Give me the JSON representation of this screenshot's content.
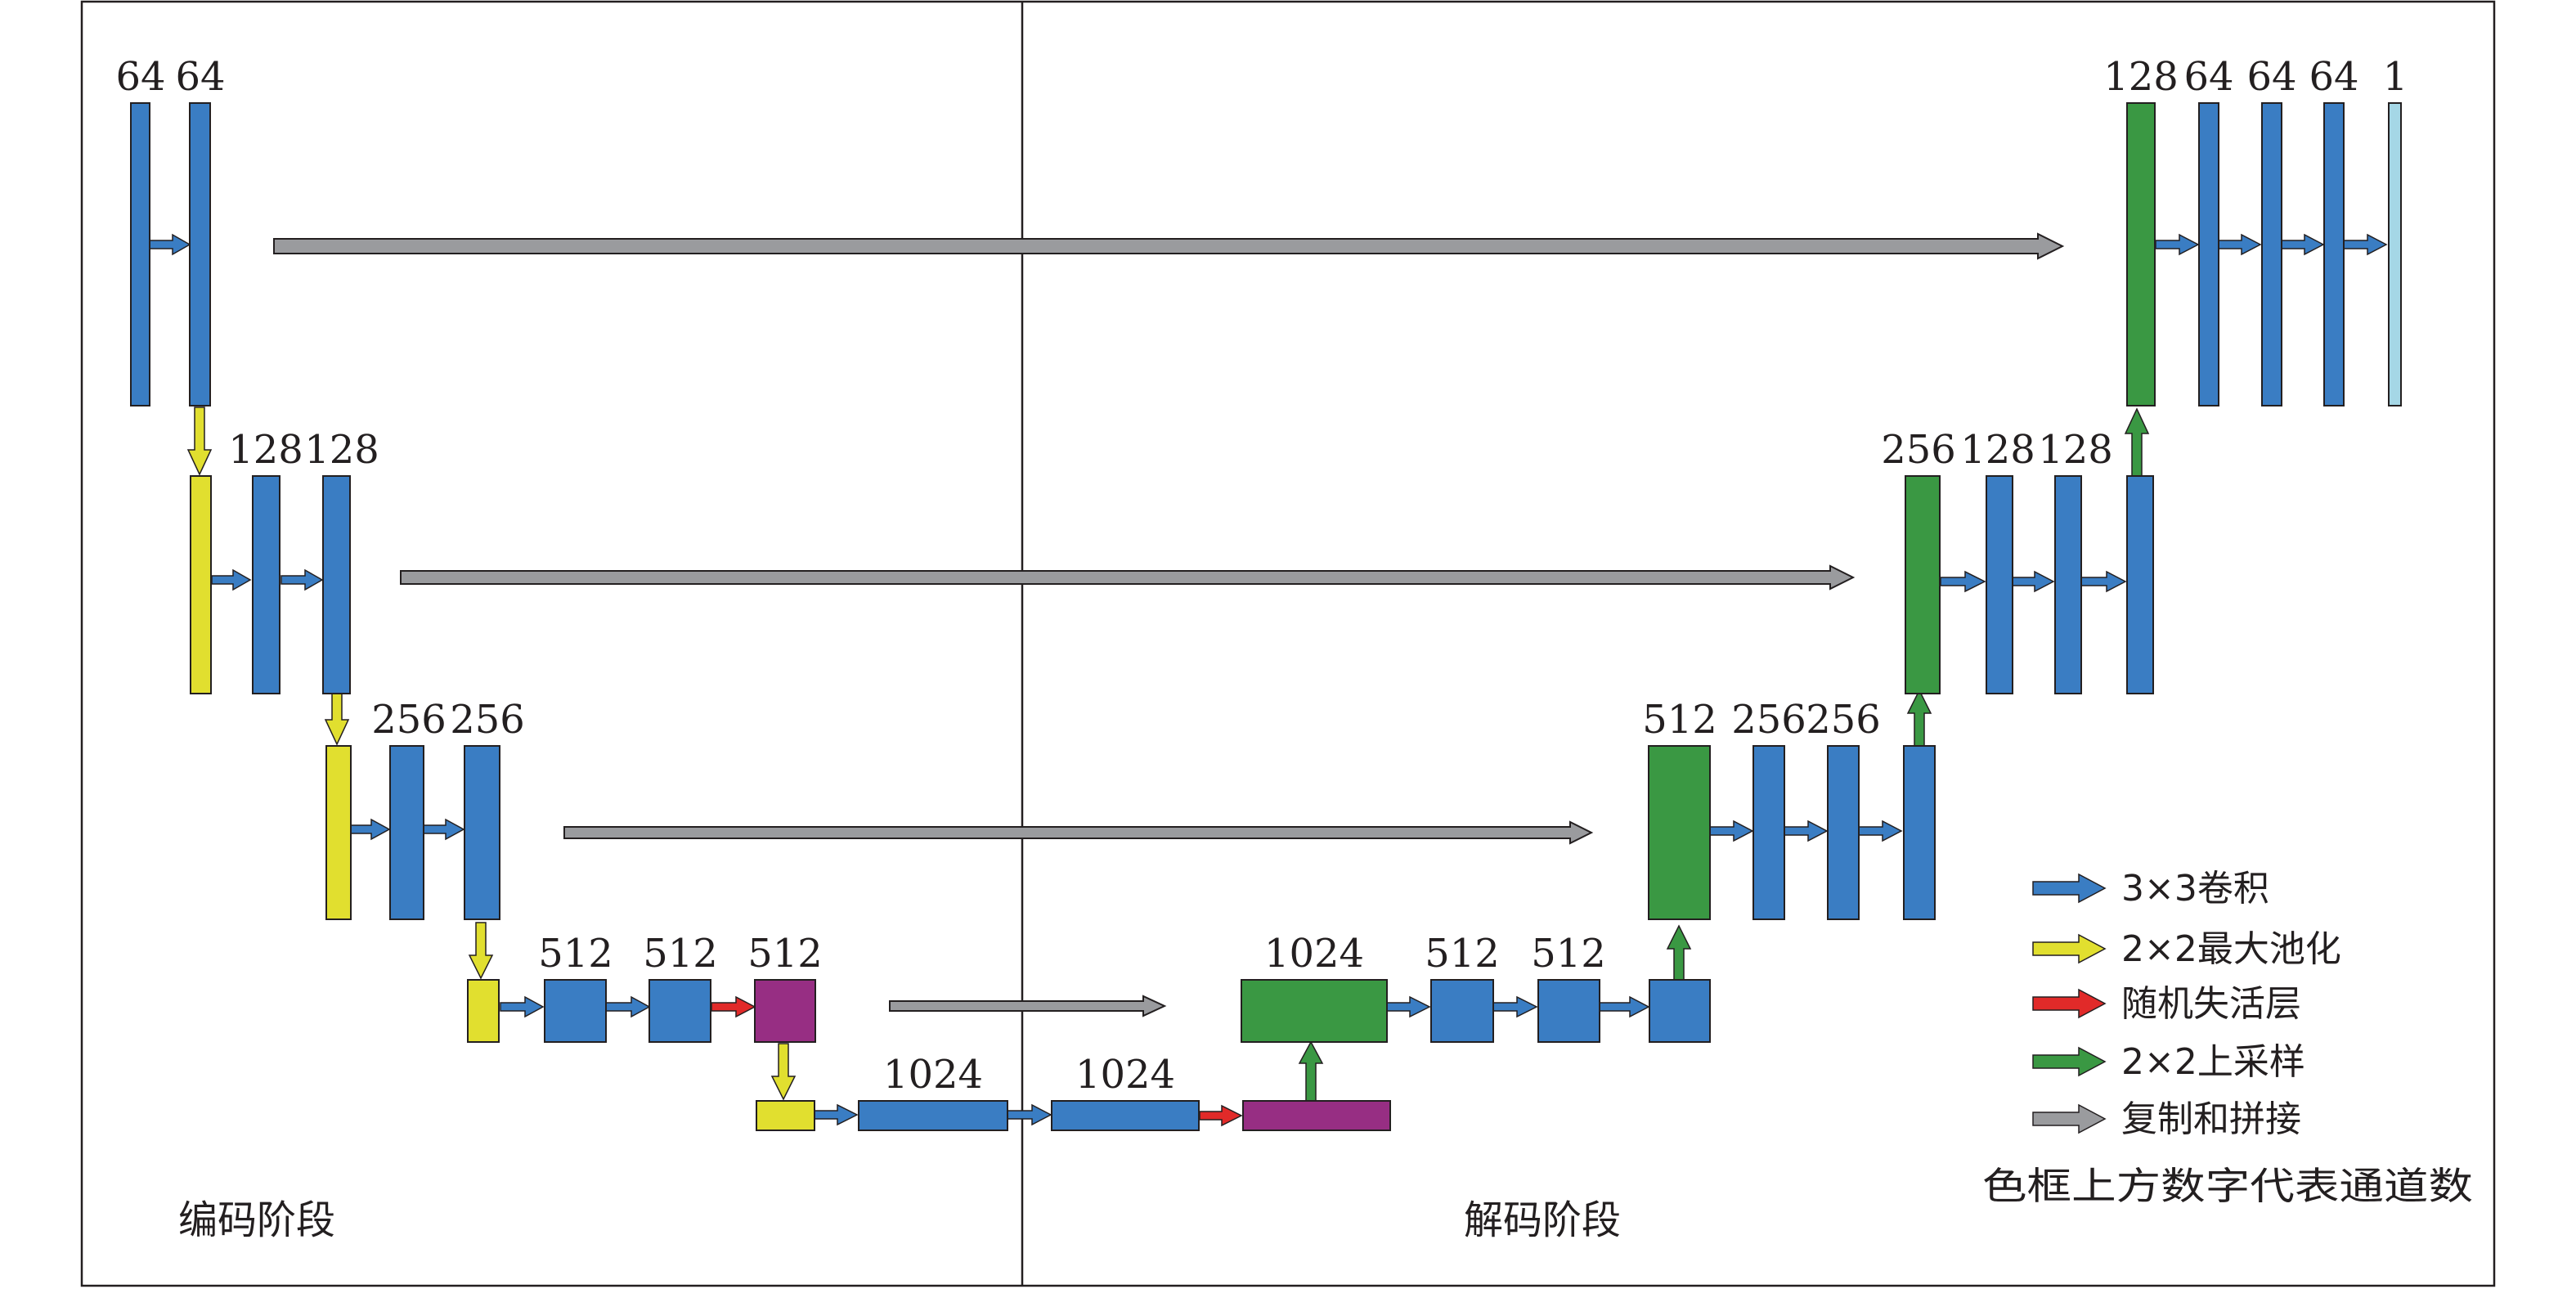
{
  "colors": {
    "conv": "#3a7dc3",
    "pool": "#e1df2f",
    "dropout": "#e12a29",
    "upsample": "#3a9843",
    "copy": "#9a9b9e",
    "dropout_block": "#972e83",
    "output": "#a5d7e6",
    "frame": "#231f20"
  },
  "stages": {
    "encoder_label": "编码阶段",
    "decoder_label": "解码阶段"
  },
  "channels": {
    "enc1": [
      "64",
      "64"
    ],
    "enc2": [
      "128",
      "128"
    ],
    "enc3": [
      "256",
      "256"
    ],
    "enc4": [
      "512",
      "512",
      "512"
    ],
    "bottleneck": [
      "1024",
      "1024"
    ],
    "dec4": [
      "1024",
      "512",
      "512"
    ],
    "dec3": [
      "512",
      "256",
      "256"
    ],
    "dec2": [
      "256",
      "128",
      "128"
    ],
    "dec1": [
      "128",
      "64",
      "64",
      "64",
      "1"
    ]
  },
  "legend": {
    "items": [
      {
        "label": "3×3卷积",
        "icon": "blue-arrow-icon"
      },
      {
        "label": "2×2最大池化",
        "icon": "yellow-arrow-icon"
      },
      {
        "label": "随机失活层",
        "icon": "red-arrow-icon"
      },
      {
        "label": "2×2上采样",
        "icon": "green-arrow-icon"
      },
      {
        "label": "复制和拼接",
        "icon": "gray-arrow-icon"
      }
    ],
    "note": "色框上方数字代表通道数"
  }
}
